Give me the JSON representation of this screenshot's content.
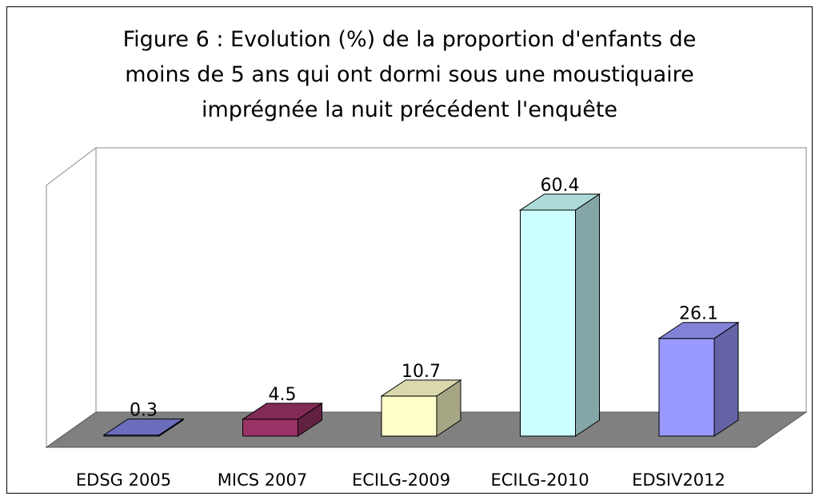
{
  "chart_data": {
    "type": "bar3d",
    "title_lines": [
      "Figure 6 : Evolution (%) de la proportion d'enfants de",
      "moins de 5 ans qui ont dormi sous une moustiquaire",
      "imprégnée la nuit précédent l'enquête"
    ],
    "categories": [
      "EDSG 2005",
      "MICS 2007",
      "ECILG-2009",
      "ECILG-2010",
      "EDSIV2012"
    ],
    "values": [
      0.3,
      4.5,
      10.7,
      60.4,
      26.1
    ],
    "colors": [
      "#8080e0",
      "#993366",
      "#ffffcc",
      "#ccffff",
      "#9999ff"
    ]
  }
}
